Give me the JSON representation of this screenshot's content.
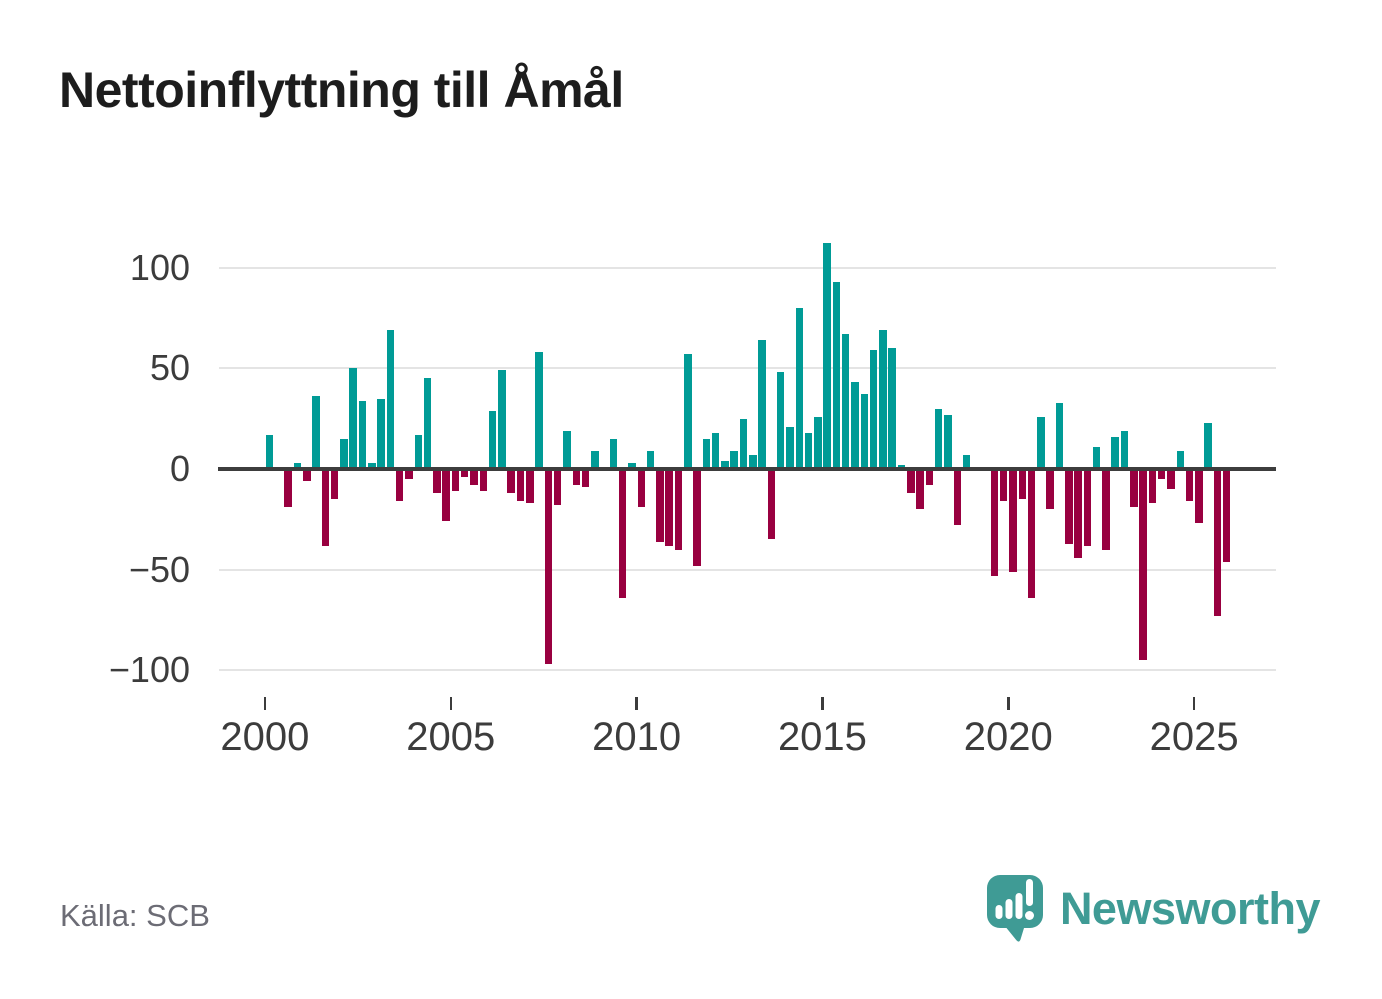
{
  "title": "Nettoinflyttning till Åmål",
  "source": "Källa: SCB",
  "branding": {
    "logo_text": "Newsworthy",
    "logo_color": "#3f9b95"
  },
  "colors": {
    "positive_bar": "#009B96",
    "negative_bar": "#990040",
    "gridline": "#e4e4e4",
    "zero_line": "#3d3d3d",
    "axis_text": "#3c3c3c",
    "title_text": "#1d1d1d",
    "source_text": "#6c6c75"
  },
  "chart_data": {
    "type": "bar",
    "title": "Nettoinflyttning till Åmål",
    "xlabel": "",
    "ylabel": "",
    "frequency": "quarterly",
    "x_start": "2000-Q1",
    "x_end": "2025-Q4",
    "values": [
      17,
      0,
      -19,
      3,
      -6,
      36,
      -38,
      -15,
      15,
      50,
      34,
      3,
      35,
      69,
      -16,
      -5,
      17,
      45,
      -12,
      -26,
      -11,
      -4,
      -8,
      -11,
      29,
      49,
      -12,
      -16,
      -17,
      58,
      -97,
      -18,
      19,
      -8,
      -9,
      9,
      0,
      15,
      -64,
      3,
      -19,
      9,
      -36,
      -38,
      -40,
      57,
      -48,
      15,
      18,
      4,
      9,
      25,
      7,
      64,
      -35,
      48,
      21,
      80,
      18,
      26,
      112,
      93,
      67,
      43,
      37,
      59,
      69,
      60,
      2,
      -12,
      -20,
      -8,
      30,
      27,
      -28,
      7,
      0,
      0,
      -53,
      -16,
      -51,
      -15,
      -64,
      26,
      -20,
      33,
      -37,
      -44,
      -38,
      11,
      -40,
      16,
      19,
      -19,
      -95,
      -17,
      -5,
      -10,
      9,
      -16,
      -27,
      23,
      -73,
      -46
    ],
    "y_ticks": [
      {
        "label": "100",
        "value": 100
      },
      {
        "label": "50",
        "value": 50
      },
      {
        "label": "0",
        "value": 0
      },
      {
        "label": "−50",
        "value": -50
      },
      {
        "label": "−100",
        "value": -100
      }
    ],
    "y_gridlines": [
      100,
      50,
      -50,
      -100
    ],
    "x_ticks": [
      {
        "label": "2000",
        "year": 2000
      },
      {
        "label": "2005",
        "year": 2005
      },
      {
        "label": "2010",
        "year": 2010
      },
      {
        "label": "2015",
        "year": 2015
      },
      {
        "label": "2020",
        "year": 2020
      },
      {
        "label": "2025",
        "year": 2025
      }
    ],
    "ylim": [
      -110,
      118
    ],
    "grid": true,
    "legend": "none"
  }
}
